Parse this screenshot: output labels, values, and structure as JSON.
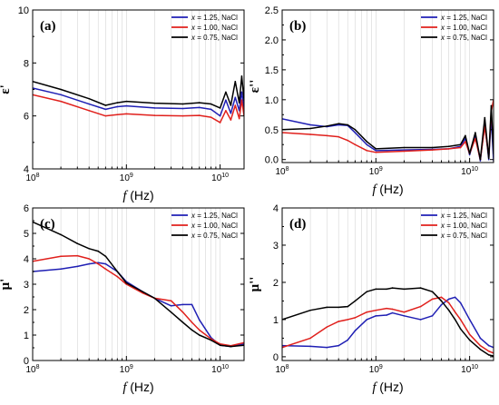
{
  "figure": {
    "colors": {
      "blue": "#1f1fb4",
      "red": "#e0201c",
      "black": "#000000",
      "grid": "#d6d6d6"
    },
    "legend_position": "top-right",
    "xscale": "log",
    "grid_vertical": true
  },
  "chart_data": [
    {
      "type": "line",
      "panel_label": "(a)",
      "xlabel_var": "f",
      "xlabel_unit": "(Hz)",
      "ylabel": "ε'",
      "xlim": [
        100000000.0,
        18000000000.0
      ],
      "ylim": [
        4,
        10
      ],
      "xticks": [
        {
          "value": 100000000.0,
          "base": "10",
          "exp": "8"
        },
        {
          "value": 1000000000.0,
          "base": "10",
          "exp": "9"
        },
        {
          "value": 10000000000.0,
          "base": "10",
          "exp": "10"
        }
      ],
      "yticks": [
        {
          "value": 4,
          "label": "4"
        },
        {
          "value": 6,
          "label": "6"
        },
        {
          "value": 8,
          "label": "8"
        },
        {
          "value": 10,
          "label": "10"
        }
      ],
      "series": [
        {
          "var": "x",
          "name": " = 1.25, NaCl",
          "color": "#1f1fb4",
          "x": [
            100000000.0,
            200000000.0,
            400000000.0,
            600000000.0,
            800000000.0,
            1000000000.0,
            2000000000.0,
            4000000000.0,
            6000000000.0,
            8000000000.0,
            10000000000.0,
            11500000000.0,
            13000000000.0,
            14500000000.0,
            16000000000.0,
            17000000000.0,
            18000000000.0
          ],
          "y": [
            7.05,
            6.8,
            6.45,
            6.25,
            6.35,
            6.38,
            6.3,
            6.28,
            6.32,
            6.25,
            6.0,
            6.6,
            6.1,
            6.7,
            6.2,
            6.9,
            6.3
          ]
        },
        {
          "var": "x",
          "name": " = 1.00, NaCl",
          "color": "#e0201c",
          "x": [
            100000000.0,
            200000000.0,
            400000000.0,
            600000000.0,
            800000000.0,
            1000000000.0,
            2000000000.0,
            4000000000.0,
            6000000000.0,
            8000000000.0,
            10000000000.0,
            11500000000.0,
            13000000000.0,
            14500000000.0,
            16000000000.0,
            17000000000.0,
            18000000000.0
          ],
          "y": [
            6.8,
            6.55,
            6.2,
            6.0,
            6.05,
            6.08,
            6.02,
            6.0,
            6.02,
            5.95,
            5.75,
            6.2,
            5.85,
            6.4,
            5.9,
            6.6,
            6.0
          ]
        },
        {
          "var": "x",
          "name": " = 0.75, NaCl",
          "color": "#000000",
          "x": [
            100000000.0,
            200000000.0,
            400000000.0,
            600000000.0,
            800000000.0,
            1000000000.0,
            2000000000.0,
            4000000000.0,
            6000000000.0,
            8000000000.0,
            10000000000.0,
            11500000000.0,
            13000000000.0,
            14500000000.0,
            16000000000.0,
            17000000000.0,
            18000000000.0
          ],
          "y": [
            7.3,
            7.0,
            6.65,
            6.4,
            6.5,
            6.55,
            6.48,
            6.45,
            6.5,
            6.45,
            6.3,
            6.9,
            6.4,
            7.3,
            6.5,
            7.5,
            6.6
          ]
        }
      ]
    },
    {
      "type": "line",
      "panel_label": "(b)",
      "xlabel_var": "f",
      "xlabel_unit": "(Hz)",
      "ylabel": "ε''",
      "xlim": [
        100000000.0,
        18000000000.0
      ],
      "ylim": [
        -0.05,
        2.5
      ],
      "xticks": [
        {
          "value": 100000000.0,
          "base": "10",
          "exp": "8"
        },
        {
          "value": 1000000000.0,
          "base": "10",
          "exp": "9"
        },
        {
          "value": 10000000000.0,
          "base": "10",
          "exp": "10"
        }
      ],
      "yticks": [
        {
          "value": 0.0,
          "label": "0.0"
        },
        {
          "value": 0.5,
          "label": "0.5"
        },
        {
          "value": 1.0,
          "label": "1.0"
        },
        {
          "value": 1.5,
          "label": "1.5"
        },
        {
          "value": 2.0,
          "label": "2.0"
        },
        {
          "value": 2.5,
          "label": "2.5"
        }
      ],
      "series": [
        {
          "var": "x",
          "name": " = 1.25, NaCl",
          "color": "#1f1fb4",
          "x": [
            100000000.0,
            200000000.0,
            300000000.0,
            400000000.0,
            500000000.0,
            600000000.0,
            800000000.0,
            1000000000.0,
            2000000000.0,
            4000000000.0,
            6000000000.0,
            8000000000.0,
            9000000000.0,
            10000000000.0,
            11500000000.0,
            13000000000.0,
            14500000000.0,
            16000000000.0,
            17000000000.0,
            18000000000.0
          ],
          "y": [
            0.68,
            0.58,
            0.55,
            0.58,
            0.57,
            0.45,
            0.25,
            0.15,
            0.16,
            0.17,
            0.18,
            0.22,
            0.35,
            0.08,
            0.4,
            -0.02,
            0.6,
            0.0,
            0.7,
            -0.02
          ]
        },
        {
          "var": "x",
          "name": " = 1.00, NaCl",
          "color": "#e0201c",
          "x": [
            100000000.0,
            200000000.0,
            300000000.0,
            400000000.0,
            500000000.0,
            600000000.0,
            800000000.0,
            1000000000.0,
            2000000000.0,
            4000000000.0,
            6000000000.0,
            8000000000.0,
            9000000000.0,
            10000000000.0,
            11500000000.0,
            13000000000.0,
            14500000000.0,
            16000000000.0,
            17000000000.0,
            18000000000.0
          ],
          "y": [
            0.45,
            0.42,
            0.4,
            0.38,
            0.32,
            0.25,
            0.15,
            0.12,
            0.14,
            0.16,
            0.18,
            0.2,
            0.3,
            0.1,
            0.35,
            0.0,
            0.55,
            0.05,
            0.8,
            1.0
          ]
        },
        {
          "var": "x",
          "name": " = 0.75, NaCl",
          "color": "#000000",
          "x": [
            100000000.0,
            200000000.0,
            300000000.0,
            400000000.0,
            500000000.0,
            600000000.0,
            800000000.0,
            1000000000.0,
            2000000000.0,
            4000000000.0,
            6000000000.0,
            8000000000.0,
            9000000000.0,
            10000000000.0,
            11500000000.0,
            13000000000.0,
            14500000000.0,
            16000000000.0,
            17000000000.0,
            18000000000.0
          ],
          "y": [
            0.5,
            0.52,
            0.56,
            0.6,
            0.58,
            0.5,
            0.3,
            0.18,
            0.2,
            0.2,
            0.22,
            0.25,
            0.4,
            0.1,
            0.45,
            0.0,
            0.7,
            0.02,
            0.9,
            0.1
          ]
        }
      ]
    },
    {
      "type": "line",
      "panel_label": "(c)",
      "xlabel_var": "f",
      "xlabel_unit": "(Hz)",
      "ylabel": "μ'",
      "xlim": [
        100000000.0,
        18000000000.0
      ],
      "ylim": [
        0,
        6
      ],
      "xticks": [
        {
          "value": 100000000.0,
          "base": "10",
          "exp": "8"
        },
        {
          "value": 1000000000.0,
          "base": "10",
          "exp": "9"
        },
        {
          "value": 10000000000.0,
          "base": "10",
          "exp": "10"
        }
      ],
      "yticks": [
        {
          "value": 0,
          "label": "0"
        },
        {
          "value": 1,
          "label": "1"
        },
        {
          "value": 2,
          "label": "2"
        },
        {
          "value": 3,
          "label": "3"
        },
        {
          "value": 4,
          "label": "4"
        },
        {
          "value": 5,
          "label": "5"
        },
        {
          "value": 6,
          "label": "6"
        }
      ],
      "series": [
        {
          "var": "x",
          "name": " = 1.25, NaCl",
          "color": "#1f1fb4",
          "x": [
            100000000.0,
            200000000.0,
            300000000.0,
            400000000.0,
            500000000.0,
            600000000.0,
            800000000.0,
            1000000000.0,
            1500000000.0,
            2000000000.0,
            3000000000.0,
            4000000000.0,
            5000000000.0,
            6000000000.0,
            8000000000.0,
            10000000000.0,
            13000000000.0,
            18000000000.0
          ],
          "y": [
            3.5,
            3.6,
            3.7,
            3.8,
            3.85,
            3.8,
            3.5,
            3.1,
            2.7,
            2.45,
            2.15,
            2.2,
            2.2,
            1.6,
            0.9,
            0.6,
            0.55,
            0.65
          ]
        },
        {
          "var": "x",
          "name": " = 1.00, NaCl",
          "color": "#e0201c",
          "x": [
            100000000.0,
            200000000.0,
            300000000.0,
            400000000.0,
            500000000.0,
            600000000.0,
            800000000.0,
            1000000000.0,
            1500000000.0,
            2000000000.0,
            3000000000.0,
            4000000000.0,
            5000000000.0,
            6000000000.0,
            8000000000.0,
            10000000000.0,
            13000000000.0,
            18000000000.0
          ],
          "y": [
            3.9,
            4.1,
            4.12,
            4.0,
            3.8,
            3.6,
            3.3,
            3.0,
            2.65,
            2.45,
            2.35,
            1.9,
            1.5,
            1.2,
            0.85,
            0.65,
            0.58,
            0.7
          ]
        },
        {
          "var": "x",
          "name": " = 0.75, NaCl",
          "color": "#000000",
          "x": [
            100000000.0,
            200000000.0,
            300000000.0,
            400000000.0,
            500000000.0,
            600000000.0,
            800000000.0,
            1000000000.0,
            1500000000.0,
            2000000000.0,
            3000000000.0,
            4000000000.0,
            5000000000.0,
            6000000000.0,
            8000000000.0,
            10000000000.0,
            13000000000.0,
            18000000000.0
          ],
          "y": [
            5.45,
            4.95,
            4.6,
            4.4,
            4.3,
            4.1,
            3.5,
            3.05,
            2.7,
            2.45,
            1.9,
            1.5,
            1.2,
            1.0,
            0.8,
            0.6,
            0.55,
            0.6
          ]
        }
      ]
    },
    {
      "type": "line",
      "panel_label": "(d)",
      "xlabel_var": "f",
      "xlabel_unit": "(Hz)",
      "ylabel": "μ''",
      "xlim": [
        100000000.0,
        18000000000.0
      ],
      "ylim": [
        -0.1,
        4
      ],
      "xticks": [
        {
          "value": 100000000.0,
          "base": "10",
          "exp": "8"
        },
        {
          "value": 1000000000.0,
          "base": "10",
          "exp": "9"
        },
        {
          "value": 10000000000.0,
          "base": "10",
          "exp": "10"
        }
      ],
      "yticks": [
        {
          "value": 0,
          "label": "0"
        },
        {
          "value": 1,
          "label": "1"
        },
        {
          "value": 2,
          "label": "2"
        },
        {
          "value": 3,
          "label": "3"
        },
        {
          "value": 4,
          "label": "4"
        }
      ],
      "series": [
        {
          "var": "x",
          "name": " = 1.25, NaCl",
          "color": "#1f1fb4",
          "x": [
            100000000.0,
            200000000.0,
            300000000.0,
            400000000.0,
            500000000.0,
            600000000.0,
            800000000.0,
            1000000000.0,
            1300000000.0,
            1500000000.0,
            2000000000.0,
            3000000000.0,
            4000000000.0,
            5000000000.0,
            6000000000.0,
            7000000000.0,
            8000000000.0,
            10000000000.0,
            13000000000.0,
            16000000000.0,
            18000000000.0
          ],
          "y": [
            0.3,
            0.28,
            0.25,
            0.3,
            0.45,
            0.7,
            1.0,
            1.1,
            1.12,
            1.18,
            1.1,
            1.0,
            1.1,
            1.4,
            1.55,
            1.6,
            1.45,
            1.0,
            0.5,
            0.3,
            0.25
          ]
        },
        {
          "var": "x",
          "name": " = 1.00, NaCl",
          "color": "#e0201c",
          "x": [
            100000000.0,
            200000000.0,
            300000000.0,
            400000000.0,
            500000000.0,
            600000000.0,
            800000000.0,
            1000000000.0,
            1300000000.0,
            1500000000.0,
            2000000000.0,
            3000000000.0,
            4000000000.0,
            5000000000.0,
            6000000000.0,
            7000000000.0,
            8000000000.0,
            10000000000.0,
            13000000000.0,
            16000000000.0,
            18000000000.0
          ],
          "y": [
            0.25,
            0.5,
            0.8,
            0.95,
            1.0,
            1.05,
            1.2,
            1.25,
            1.3,
            1.28,
            1.2,
            1.35,
            1.55,
            1.6,
            1.45,
            1.2,
            1.0,
            0.6,
            0.3,
            0.15,
            0.1
          ]
        },
        {
          "var": "x",
          "name": " = 0.75, NaCl",
          "color": "#000000",
          "x": [
            100000000.0,
            200000000.0,
            300000000.0,
            400000000.0,
            500000000.0,
            600000000.0,
            800000000.0,
            1000000000.0,
            1300000000.0,
            1500000000.0,
            2000000000.0,
            3000000000.0,
            4000000000.0,
            5000000000.0,
            6000000000.0,
            7000000000.0,
            8000000000.0,
            10000000000.0,
            13000000000.0,
            16000000000.0,
            18000000000.0
          ],
          "y": [
            1.0,
            1.25,
            1.33,
            1.33,
            1.35,
            1.5,
            1.75,
            1.82,
            1.82,
            1.85,
            1.82,
            1.85,
            1.75,
            1.5,
            1.25,
            1.0,
            0.75,
            0.45,
            0.2,
            0.05,
            0.02
          ]
        }
      ]
    }
  ]
}
